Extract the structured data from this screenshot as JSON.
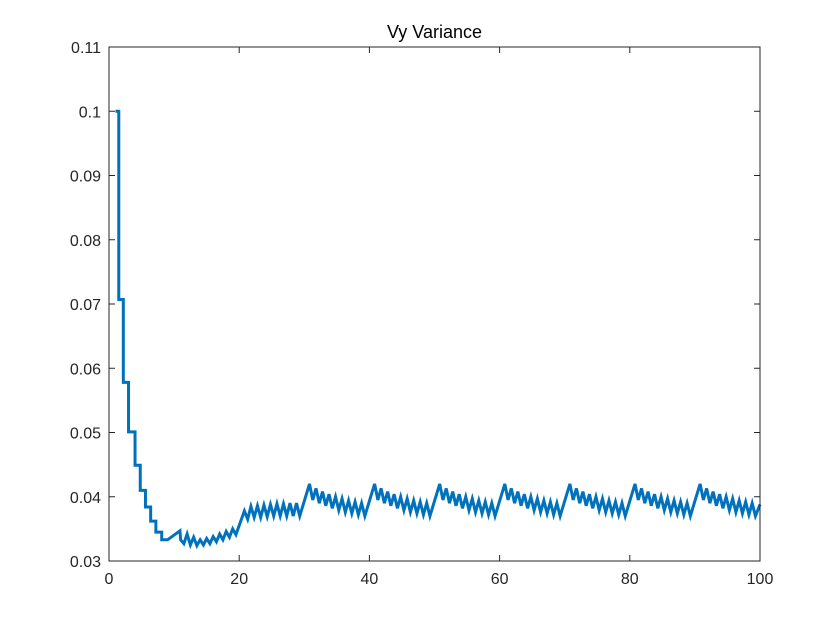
{
  "chart_data": {
    "type": "line",
    "title": "Vy Variance",
    "xlabel": "",
    "ylabel": "",
    "xlim": [
      0,
      100
    ],
    "ylim": [
      0.03,
      0.11
    ],
    "x_ticks": [
      0,
      20,
      40,
      60,
      80,
      100
    ],
    "x_tick_labels": [
      "0",
      "20",
      "40",
      "60",
      "80",
      "100"
    ],
    "y_ticks": [
      0.03,
      0.04,
      0.05,
      0.06,
      0.07,
      0.08,
      0.09,
      0.1,
      0.11
    ],
    "y_tick_labels": [
      "0.03",
      "0.04",
      "0.05",
      "0.06",
      "0.07",
      "0.08",
      "0.09",
      "0.1",
      "0.11"
    ],
    "grid": false,
    "legend": "none",
    "series": [
      {
        "color": "#0072BD",
        "points": [
          [
            1,
            0.1
          ],
          [
            1.5,
            0.1
          ],
          [
            1.5,
            0.0707
          ],
          [
            2.2,
            0.0707
          ],
          [
            2.2,
            0.0578
          ],
          [
            3,
            0.0578
          ],
          [
            3,
            0.0501
          ],
          [
            4,
            0.0501
          ],
          [
            4,
            0.0449
          ],
          [
            4.8,
            0.0449
          ],
          [
            4.8,
            0.041
          ],
          [
            5.6,
            0.041
          ],
          [
            5.6,
            0.0384
          ],
          [
            6.4,
            0.0384
          ],
          [
            6.4,
            0.0362
          ],
          [
            7.2,
            0.0362
          ],
          [
            7.2,
            0.0345
          ],
          [
            8.1,
            0.0345
          ],
          [
            8.1,
            0.0333
          ],
          [
            9,
            0.0333
          ],
          [
            10.9,
            0.0347
          ],
          [
            11,
            0.0333
          ],
          [
            11.5,
            0.0327
          ],
          [
            12,
            0.0342
          ],
          [
            12.5,
            0.0325
          ],
          [
            13,
            0.0337
          ],
          [
            13.5,
            0.0324
          ],
          [
            14,
            0.0333
          ],
          [
            14.5,
            0.0325
          ],
          [
            15,
            0.0335
          ],
          [
            15.5,
            0.0327
          ],
          [
            16,
            0.0338
          ],
          [
            16.5,
            0.033
          ],
          [
            17,
            0.0342
          ],
          [
            17.5,
            0.0333
          ],
          [
            18,
            0.0346
          ],
          [
            18.5,
            0.0337
          ],
          [
            19,
            0.035
          ],
          [
            19.5,
            0.0341
          ],
          [
            20.8,
            0.0378
          ],
          [
            21.3,
            0.0365
          ],
          [
            21.8,
            0.0385
          ],
          [
            22.3,
            0.0368
          ],
          [
            22.8,
            0.0386
          ],
          [
            23.3,
            0.0368
          ],
          [
            23.8,
            0.0387
          ],
          [
            24.3,
            0.0369
          ],
          [
            24.8,
            0.0388
          ],
          [
            25.3,
            0.037
          ],
          [
            25.8,
            0.0389
          ],
          [
            26.3,
            0.037
          ],
          [
            26.8,
            0.0389
          ],
          [
            27.3,
            0.037
          ],
          [
            27.8,
            0.039
          ],
          [
            28.3,
            0.037
          ],
          [
            28.8,
            0.039
          ],
          [
            29.3,
            0.037
          ],
          [
            30.8,
            0.042
          ],
          [
            31.3,
            0.0395
          ],
          [
            31.8,
            0.0413
          ],
          [
            32.3,
            0.039
          ],
          [
            32.8,
            0.0408
          ],
          [
            33.3,
            0.0386
          ],
          [
            33.8,
            0.0404
          ],
          [
            34.3,
            0.0382
          ],
          [
            34.8,
            0.04
          ],
          [
            35.3,
            0.0379
          ],
          [
            35.8,
            0.0397
          ],
          [
            36.3,
            0.0376
          ],
          [
            36.8,
            0.0394
          ],
          [
            37.3,
            0.0374
          ],
          [
            37.8,
            0.0392
          ],
          [
            38.3,
            0.0372
          ],
          [
            38.8,
            0.039
          ],
          [
            39.3,
            0.037
          ],
          [
            40.8,
            0.042
          ],
          [
            41.3,
            0.0395
          ],
          [
            41.8,
            0.0413
          ],
          [
            42.3,
            0.039
          ],
          [
            42.8,
            0.0408
          ],
          [
            43.3,
            0.0386
          ],
          [
            43.8,
            0.0404
          ],
          [
            44.3,
            0.0382
          ],
          [
            44.8,
            0.04
          ],
          [
            45.3,
            0.0379
          ],
          [
            45.8,
            0.0397
          ],
          [
            46.3,
            0.0376
          ],
          [
            46.8,
            0.0394
          ],
          [
            47.3,
            0.0374
          ],
          [
            47.8,
            0.0392
          ],
          [
            48.3,
            0.0372
          ],
          [
            48.8,
            0.039
          ],
          [
            49.3,
            0.037
          ],
          [
            50.8,
            0.042
          ],
          [
            51.3,
            0.0395
          ],
          [
            51.8,
            0.0413
          ],
          [
            52.3,
            0.039
          ],
          [
            52.8,
            0.0408
          ],
          [
            53.3,
            0.0386
          ],
          [
            53.8,
            0.0404
          ],
          [
            54.3,
            0.0382
          ],
          [
            54.8,
            0.04
          ],
          [
            55.3,
            0.0379
          ],
          [
            55.8,
            0.0397
          ],
          [
            56.3,
            0.0376
          ],
          [
            56.8,
            0.0394
          ],
          [
            57.3,
            0.0374
          ],
          [
            57.8,
            0.0392
          ],
          [
            58.3,
            0.0372
          ],
          [
            58.8,
            0.039
          ],
          [
            59.3,
            0.037
          ],
          [
            60.8,
            0.042
          ],
          [
            61.3,
            0.0395
          ],
          [
            61.8,
            0.0413
          ],
          [
            62.3,
            0.039
          ],
          [
            62.8,
            0.0408
          ],
          [
            63.3,
            0.0386
          ],
          [
            63.8,
            0.0404
          ],
          [
            64.3,
            0.0382
          ],
          [
            64.8,
            0.04
          ],
          [
            65.3,
            0.0379
          ],
          [
            65.8,
            0.0397
          ],
          [
            66.3,
            0.0376
          ],
          [
            66.8,
            0.0394
          ],
          [
            67.3,
            0.0374
          ],
          [
            67.8,
            0.0392
          ],
          [
            68.3,
            0.0372
          ],
          [
            68.8,
            0.039
          ],
          [
            69.3,
            0.037
          ],
          [
            70.8,
            0.042
          ],
          [
            71.3,
            0.0395
          ],
          [
            71.8,
            0.0413
          ],
          [
            72.3,
            0.039
          ],
          [
            72.8,
            0.0408
          ],
          [
            73.3,
            0.0386
          ],
          [
            73.8,
            0.0404
          ],
          [
            74.3,
            0.0382
          ],
          [
            74.8,
            0.04
          ],
          [
            75.3,
            0.0379
          ],
          [
            75.8,
            0.0397
          ],
          [
            76.3,
            0.0376
          ],
          [
            76.8,
            0.0394
          ],
          [
            77.3,
            0.0374
          ],
          [
            77.8,
            0.0392
          ],
          [
            78.3,
            0.0372
          ],
          [
            78.8,
            0.039
          ],
          [
            79.3,
            0.037
          ],
          [
            80.8,
            0.042
          ],
          [
            81.3,
            0.0395
          ],
          [
            81.8,
            0.0413
          ],
          [
            82.3,
            0.039
          ],
          [
            82.8,
            0.0408
          ],
          [
            83.3,
            0.0386
          ],
          [
            83.8,
            0.0404
          ],
          [
            84.3,
            0.0382
          ],
          [
            84.8,
            0.04
          ],
          [
            85.3,
            0.0379
          ],
          [
            85.8,
            0.0397
          ],
          [
            86.3,
            0.0376
          ],
          [
            86.8,
            0.0394
          ],
          [
            87.3,
            0.0374
          ],
          [
            87.8,
            0.0392
          ],
          [
            88.3,
            0.0372
          ],
          [
            88.8,
            0.039
          ],
          [
            89.3,
            0.037
          ],
          [
            90.8,
            0.042
          ],
          [
            91.3,
            0.0395
          ],
          [
            91.8,
            0.0413
          ],
          [
            92.3,
            0.039
          ],
          [
            92.8,
            0.0408
          ],
          [
            93.3,
            0.0386
          ],
          [
            93.8,
            0.0404
          ],
          [
            94.3,
            0.0382
          ],
          [
            94.8,
            0.04
          ],
          [
            95.3,
            0.0379
          ],
          [
            95.8,
            0.0397
          ],
          [
            96.3,
            0.0376
          ],
          [
            96.8,
            0.0394
          ],
          [
            97.3,
            0.0374
          ],
          [
            97.8,
            0.0392
          ],
          [
            98.3,
            0.0372
          ],
          [
            98.8,
            0.039
          ],
          [
            99.3,
            0.037
          ],
          [
            100,
            0.0388
          ]
        ]
      }
    ]
  }
}
